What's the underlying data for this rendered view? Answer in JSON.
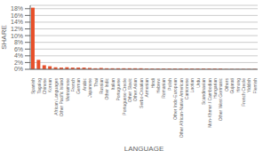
{
  "chart_data": {
    "type": "bar",
    "xlabel": "LANGUAGE",
    "ylabel": "SHARE",
    "color": "#e8502a",
    "grid": true,
    "ylim": [
      0,
      0.19
    ],
    "yticks": [
      {
        "value": 0.0,
        "label": "0%"
      },
      {
        "value": 0.02,
        "label": "2%"
      },
      {
        "value": 0.04,
        "label": "4%"
      },
      {
        "value": 0.06,
        "label": "6%"
      },
      {
        "value": 0.08,
        "label": "8%"
      },
      {
        "value": 0.1,
        "label": "10%"
      },
      {
        "value": 0.12,
        "label": "12%"
      },
      {
        "value": 0.14,
        "label": "14%"
      },
      {
        "value": 0.16,
        "label": "16%"
      },
      {
        "value": 0.18,
        "label": "18%"
      }
    ],
    "categories": [
      "Spanish",
      "Tagalog",
      "Chinese",
      "Korean",
      "African Languages",
      "Other Pacific Island",
      "Vietnamese",
      "French",
      "German",
      "Arabic",
      "Japanese",
      "Thai",
      "Russian",
      "Other Indic",
      "Italian",
      "Portuguese",
      "Portuguese Creole",
      "Other Slavic",
      "Other Asian",
      "Serbo-Croatian",
      "Armenian",
      "Hindi",
      "Hebrew",
      "Romanian",
      "Polish",
      "Other Indo-European",
      "Other African-Native American",
      "Cantonese",
      "Laotian",
      "Urdu",
      "Scandinavian",
      "Mon-Khmer / Cambodian",
      "Hungarian",
      "Other West Germanic",
      "Others",
      "Gujarati",
      "Hmong",
      "French Creole",
      "Yiddish",
      "Flemish"
    ],
    "values": [
      0.183,
      0.028,
      0.012,
      0.009,
      0.006,
      0.005,
      0.006,
      0.005,
      0.005,
      0.005,
      0.004,
      0.003,
      0.004,
      0.003,
      0.003,
      0.003,
      0.003,
      0.003,
      0.003,
      0.003,
      0.002,
      0.002,
      0.002,
      0.002,
      0.002,
      0.002,
      0.002,
      0.002,
      0.002,
      0.002,
      0.002,
      0.002,
      0.002,
      0.002,
      0.001,
      0.001,
      0.001,
      0.001,
      0.001,
      0.001
    ]
  }
}
